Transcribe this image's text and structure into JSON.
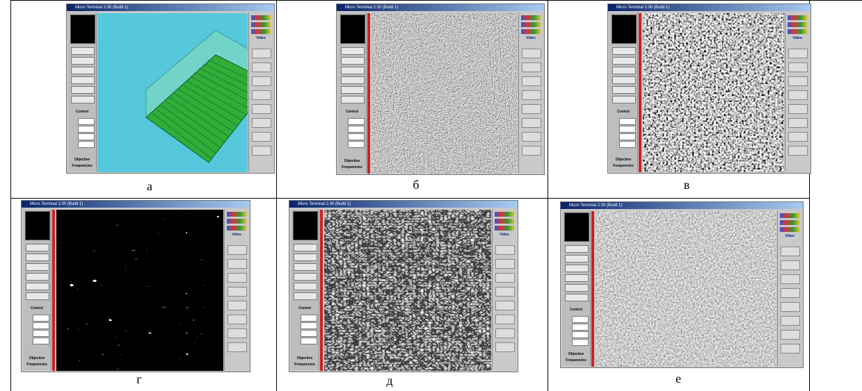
{
  "panels": [
    {
      "label": "а",
      "title": "Micro Terminal 2.00 (Build 1)",
      "control": "Control",
      "objective": "Objective",
      "frequencies": "Frequencies",
      "video": "Video"
    },
    {
      "label": "б",
      "title": "Micro Terminal 2.00 (Build 1)",
      "control": "Control",
      "objective": "Objective",
      "frequencies": "Frequencies",
      "video": "Video"
    },
    {
      "label": "в",
      "title": "Micro Terminal 2.00 (Build 1)",
      "control": "Control",
      "objective": "Objective",
      "frequencies": "Frequencies",
      "video": "Video"
    },
    {
      "label": "г",
      "title": "Micro Terminal 2.00 (Build 1)",
      "control": "Control",
      "objective": "Objective",
      "frequencies": "Frequencies",
      "video": "Video"
    },
    {
      "label": "д",
      "title": "Micro Terminal 2.00 (Build 1)",
      "control": "Control",
      "objective": "Objective",
      "frequencies": "Frequencies",
      "video": "Video"
    },
    {
      "label": "е",
      "title": "Micro Terminal 2.00 (Build 1)",
      "control": "Control",
      "objective": "Objective",
      "frequencies": "Frequencies",
      "video": "Video"
    }
  ]
}
